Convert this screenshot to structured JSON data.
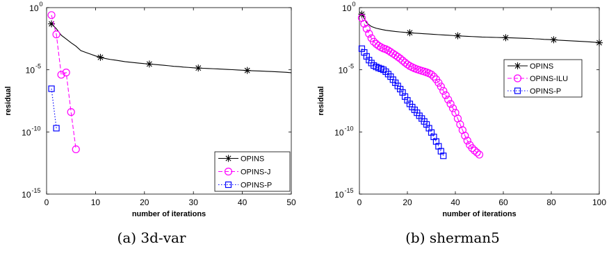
{
  "chart_data": [
    {
      "type": "line",
      "caption": "(a) 3d-var",
      "xlabel": "number of iterations",
      "ylabel": "residual",
      "xlim": [
        0,
        50
      ],
      "ylim": [
        1e-15,
        1
      ],
      "yscale": "log",
      "xticks": [
        0,
        10,
        20,
        30,
        40,
        50
      ],
      "yticks": [
        {
          "base": "10",
          "exp": "0",
          "value": 1
        },
        {
          "base": "10",
          "exp": "-5",
          "value": 1e-05
        },
        {
          "base": "10",
          "exp": "-10",
          "value": 1e-10
        },
        {
          "base": "10",
          "exp": "-15",
          "value": 1e-15
        }
      ],
      "grid": false,
      "legend_position": "bottom-right",
      "series": [
        {
          "name": "OPINS",
          "color": "#000000",
          "dash": "solid",
          "marker": "asterisk",
          "marker_every": 10,
          "x": [
            1,
            2,
            3,
            4,
            5,
            6,
            7,
            8,
            9,
            10,
            11,
            12,
            13,
            14,
            15,
            16,
            17,
            18,
            19,
            20,
            21,
            22,
            23,
            24,
            25,
            26,
            27,
            28,
            29,
            30,
            31,
            32,
            33,
            34,
            35,
            36,
            37,
            38,
            39,
            40,
            41,
            42,
            43,
            44,
            45,
            46,
            47,
            48,
            49,
            50
          ],
          "y": [
            0.05,
            0.02,
            0.006,
            0.003,
            0.0015,
            0.0008,
            0.00035,
            0.00025,
            0.00018,
            0.00013,
            0.0001,
            8e-05,
            6.8e-05,
            6e-05,
            5.2e-05,
            4.5e-05,
            4.1e-05,
            3.7e-05,
            3.4e-05,
            3.1e-05,
            2.9e-05,
            2.7e-05,
            2.5e-05,
            2.3e-05,
            2.1e-05,
            1.9e-05,
            1.8e-05,
            1.65e-05,
            1.55e-05,
            1.45e-05,
            1.38e-05,
            1.32e-05,
            1.27e-05,
            1.22e-05,
            1.17e-05,
            1.12e-05,
            1.07e-05,
            1.02e-05,
            9.7e-06,
            9.2e-06,
            8.8e-06,
            8.4e-06,
            8.1e-06,
            7.8e-06,
            7.5e-06,
            7.2e-06,
            6.9e-06,
            6.6e-06,
            6.3e-06,
            5.8e-06
          ]
        },
        {
          "name": "OPINS-J",
          "color": "#ff00ff",
          "dash": "dashed",
          "marker": "circle",
          "marker_every": 1,
          "x": [
            1,
            2,
            3,
            4,
            5,
            6
          ],
          "y": [
            0.25,
            0.007,
            4e-06,
            6e-06,
            4e-09,
            4e-12
          ]
        },
        {
          "name": "OPINS-P",
          "color": "#0000ff",
          "dash": "dotted",
          "marker": "square",
          "marker_every": 1,
          "x": [
            1,
            2
          ],
          "y": [
            3e-07,
            2e-10
          ]
        }
      ]
    },
    {
      "type": "line",
      "caption": "(b) sherman5",
      "xlabel": "number of iterations",
      "ylabel": "residual",
      "xlim": [
        0,
        100
      ],
      "ylim": [
        1e-15,
        1
      ],
      "yscale": "log",
      "xticks": [
        0,
        20,
        40,
        60,
        80,
        100
      ],
      "yticks": [
        {
          "base": "10",
          "exp": "0",
          "value": 1
        },
        {
          "base": "10",
          "exp": "-5",
          "value": 1e-05
        },
        {
          "base": "10",
          "exp": "-10",
          "value": 1e-10
        },
        {
          "base": "10",
          "exp": "-15",
          "value": 1e-15
        }
      ],
      "grid": false,
      "legend_position": "upper-right",
      "series": [
        {
          "name": "OPINS",
          "color": "#000000",
          "dash": "solid",
          "marker": "asterisk",
          "marker_every": 10,
          "x": [
            1,
            3,
            5,
            7,
            9,
            11,
            13,
            15,
            17,
            19,
            21,
            23,
            25,
            27,
            29,
            31,
            33,
            35,
            37,
            39,
            41,
            43,
            45,
            47,
            49,
            51,
            53,
            55,
            57,
            59,
            61,
            63,
            65,
            67,
            69,
            71,
            73,
            75,
            77,
            79,
            81,
            83,
            85,
            87,
            89,
            91,
            93,
            95,
            97,
            99,
            100
          ],
          "y": [
            0.3,
            0.06,
            0.03,
            0.022,
            0.018,
            0.015,
            0.0135,
            0.012,
            0.011,
            0.0102,
            0.0095,
            0.0089,
            0.0084,
            0.0079,
            0.0075,
            0.0071,
            0.0067,
            0.0063,
            0.006,
            0.0057,
            0.0054,
            0.0051,
            0.0049,
            0.0047,
            0.0045,
            0.0043,
            0.0042,
            0.0041,
            0.004,
            0.0039,
            0.0038,
            0.0037,
            0.0036,
            0.0035,
            0.0034,
            0.0033,
            0.0031,
            0.003,
            0.0028,
            0.0027,
            0.0026,
            0.0024,
            0.0023,
            0.0022,
            0.0021,
            0.002,
            0.0019,
            0.0018,
            0.0017,
            0.0016,
            0.0015
          ]
        },
        {
          "name": "OPINS-ILU",
          "color": "#ff00ff",
          "dash": "dashed",
          "marker": "circle",
          "marker_every": 1,
          "x": [
            1,
            2,
            3,
            4,
            5,
            6,
            7,
            8,
            9,
            10,
            11,
            12,
            13,
            14,
            15,
            16,
            17,
            18,
            19,
            20,
            21,
            22,
            23,
            24,
            25,
            26,
            27,
            28,
            29,
            30,
            31,
            32,
            33,
            34,
            35,
            36,
            37,
            38,
            39,
            40,
            41,
            42,
            43,
            44,
            45,
            46,
            47,
            48,
            49,
            50
          ],
          "y": [
            0.15,
            0.05,
            0.02,
            0.008,
            0.0035,
            0.0018,
            0.0012,
            0.00085,
            0.00065,
            0.00052,
            0.00045,
            0.00036,
            0.00027,
            0.0002,
            0.00015,
            0.00011,
            8e-05,
            5.5e-05,
            3.8e-05,
            2.7e-05,
            2e-05,
            1.6e-05,
            1.3e-05,
            1.1e-05,
            9.5e-06,
            8.2e-06,
            7.2e-06,
            6.2e-06,
            5.2e-06,
            4.2e-06,
            2.8e-06,
            1.7e-06,
            9e-07,
            4.5e-07,
            2e-07,
            9e-08,
            4e-08,
            1.8e-08,
            8e-09,
            3.5e-09,
            1.2e-09,
            4e-10,
            1.4e-10,
            5e-11,
            2e-11,
            9e-12,
            5e-12,
            3.2e-12,
            2.2e-12,
            1.5e-12
          ]
        },
        {
          "name": "OPINS-P",
          "color": "#0000ff",
          "dash": "dotted",
          "marker": "square",
          "marker_every": 1,
          "x": [
            1,
            2,
            3,
            4,
            5,
            6,
            7,
            8,
            9,
            10,
            11,
            12,
            13,
            14,
            15,
            16,
            17,
            18,
            19,
            20,
            21,
            22,
            23,
            24,
            25,
            26,
            27,
            28,
            29,
            30,
            31,
            32,
            33,
            34,
            35
          ],
          "y": [
            0.0005,
            0.00025,
            0.00012,
            6e-05,
            3.5e-05,
            2.2e-05,
            1.7e-05,
            1.4e-05,
            1.2e-05,
            1e-05,
            7e-06,
            4.5e-06,
            2.8e-06,
            1.6e-06,
            9e-07,
            5e-07,
            2.8e-07,
            1.5e-07,
            7e-08,
            3.5e-08,
            1.8e-08,
            1e-08,
            6e-09,
            3.5e-09,
            2e-09,
            1.2e-09,
            7e-10,
            4e-10,
            2e-10,
            9e-11,
            4e-11,
            1.7e-11,
            7e-12,
            2.8e-12,
            1.2e-12
          ]
        }
      ]
    }
  ]
}
